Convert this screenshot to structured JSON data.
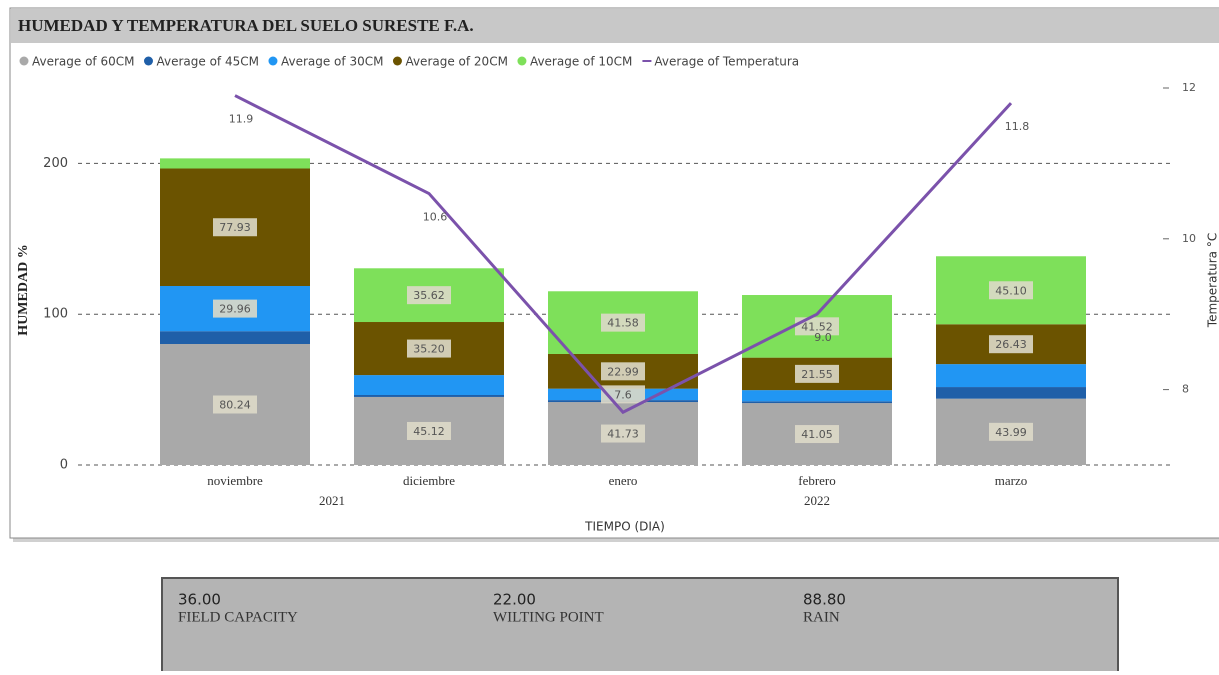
{
  "chart_data": {
    "type": "stacked-bar-line",
    "title": "HUMEDAD Y TEMPERATURA DEL SUELO SURESTE F.A.",
    "y_label": "HUMEDAD %",
    "y2_label": "Temperatura °C",
    "x_label": "TIEMPO (DIA)",
    "categories": [
      "noviembre",
      "diciembre",
      "enero",
      "febrero",
      "marzo"
    ],
    "years": [
      "2021",
      "2021",
      "2022",
      "2022",
      "2022"
    ],
    "ylim": [
      0,
      250
    ],
    "yticks": [
      0,
      100,
      200
    ],
    "y2lim": [
      7,
      12
    ],
    "y2ticks": [
      8,
      10,
      12
    ],
    "grid": true,
    "series": [
      {
        "name": "Average of 60CM",
        "color": "#a9a9a9",
        "values": [
          80.24,
          45.12,
          41.73,
          41.05,
          43.99
        ],
        "value_labels": [
          "80.24",
          "45.12",
          "41.73",
          "41.05",
          "43.99"
        ]
      },
      {
        "name": "Average of 45CM",
        "color": "#1f5fa8",
        "values": [
          8.5,
          1.3,
          1.3,
          1.2,
          7.7
        ],
        "value_labels": [
          null,
          null,
          null,
          null,
          null
        ]
      },
      {
        "name": "Average of 30CM",
        "color": "#2196f3",
        "values": [
          29.96,
          13.2,
          7.6,
          7.4,
          15.2
        ],
        "value_labels": [
          "29.96",
          null,
          "7.6",
          null,
          null
        ]
      },
      {
        "name": "Average of 20CM",
        "color": "#6b5300",
        "values": [
          77.93,
          35.2,
          22.99,
          21.55,
          26.43
        ],
        "value_labels": [
          "77.93",
          "35.20",
          "22.99",
          "21.55",
          "26.43"
        ]
      },
      {
        "name": "Average of 10CM",
        "color": "#7ee05a",
        "values": [
          6.7,
          35.62,
          41.58,
          41.52,
          45.1
        ],
        "value_labels": [
          null,
          "35.62",
          "41.58",
          "41.52",
          "45.10"
        ]
      },
      {
        "name": "Average of  Temperatura",
        "color": "#7b52ab",
        "type": "line",
        "axis": "y2",
        "values": [
          11.9,
          10.6,
          7.7,
          9.0,
          11.8
        ],
        "value_labels": [
          "11.9",
          "10.6",
          null,
          "9.0",
          "11.8"
        ]
      }
    ]
  },
  "cards": [
    {
      "value": "36.00",
      "label": "FIELD CAPACITY"
    },
    {
      "value": "22.00",
      "label": "WILTING POINT"
    },
    {
      "value": "88.80",
      "label": "RAIN"
    }
  ]
}
